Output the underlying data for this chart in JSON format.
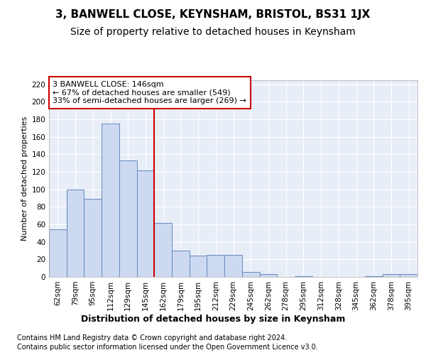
{
  "title": "3, BANWELL CLOSE, KEYNSHAM, BRISTOL, BS31 1JX",
  "subtitle": "Size of property relative to detached houses in Keynsham",
  "xlabel": "Distribution of detached houses by size in Keynsham",
  "ylabel": "Number of detached properties",
  "categories": [
    "62sqm",
    "79sqm",
    "95sqm",
    "112sqm",
    "129sqm",
    "145sqm",
    "162sqm",
    "179sqm",
    "195sqm",
    "212sqm",
    "229sqm",
    "245sqm",
    "262sqm",
    "278sqm",
    "295sqm",
    "312sqm",
    "328sqm",
    "345sqm",
    "362sqm",
    "378sqm",
    "395sqm"
  ],
  "values": [
    54,
    100,
    89,
    175,
    133,
    122,
    62,
    30,
    24,
    25,
    25,
    6,
    3,
    0,
    1,
    0,
    0,
    0,
    1,
    3,
    3
  ],
  "bar_color": "#ccd9f0",
  "bar_edge_color": "#6688bb",
  "annotation_line_color": "#cc0000",
  "annotation_box_text": "3 BANWELL CLOSE: 146sqm\n← 67% of detached houses are smaller (549)\n33% of semi-detached houses are larger (269) →",
  "annotation_box_color": "#cc0000",
  "ylim": [
    0,
    225
  ],
  "yticks": [
    0,
    20,
    40,
    60,
    80,
    100,
    120,
    140,
    160,
    180,
    200,
    220
  ],
  "footer_line1": "Contains HM Land Registry data © Crown copyright and database right 2024.",
  "footer_line2": "Contains public sector information licensed under the Open Government Licence v3.0.",
  "bg_color": "#e8eef8",
  "grid_color": "#ffffff",
  "fig_bg_color": "#ffffff",
  "title_fontsize": 11,
  "subtitle_fontsize": 10,
  "xlabel_fontsize": 9,
  "ylabel_fontsize": 8,
  "tick_fontsize": 7.5,
  "annotation_fontsize": 8,
  "footer_fontsize": 7
}
